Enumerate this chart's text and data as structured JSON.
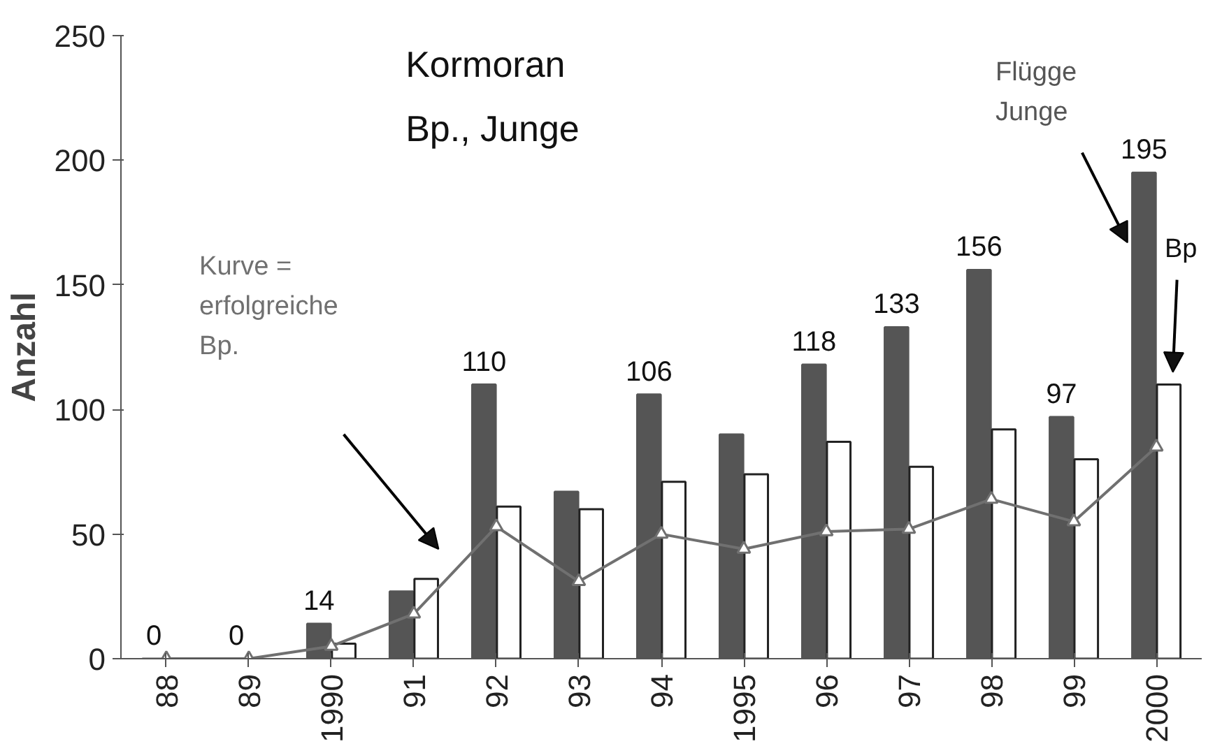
{
  "chart_data": {
    "type": "bar",
    "title": "Kormoran",
    "subtitle": "Bp., Junge",
    "ylabel": "Anzahl",
    "categories": [
      "88",
      "89",
      "1990",
      "91",
      "92",
      "93",
      "94",
      "1995",
      "96",
      "97",
      "98",
      "99",
      "2000"
    ],
    "series": [
      {
        "name": "Flügge Junge",
        "color": "#555555",
        "values": [
          0,
          0,
          14,
          27,
          110,
          67,
          106,
          90,
          118,
          133,
          156,
          97,
          195
        ],
        "value_labels": [
          "0",
          "0",
          "14",
          null,
          "110",
          null,
          "106",
          null,
          "118",
          "133",
          "156",
          "97",
          "195"
        ]
      },
      {
        "name": "Bp",
        "color": "#ffffff",
        "values": [
          0,
          0,
          6,
          32,
          61,
          60,
          71,
          74,
          87,
          77,
          92,
          80,
          110
        ]
      },
      {
        "name": "Kurve = erfolgreiche Bp.",
        "type": "line",
        "color": "#707070",
        "values": [
          0,
          0,
          5,
          18,
          53,
          31,
          50,
          44,
          51,
          52,
          64,
          55,
          85
        ]
      }
    ],
    "ylim": [
      0,
      250
    ],
    "yticks": [
      0,
      50,
      100,
      150,
      200,
      250
    ],
    "grid": false,
    "legend": false,
    "marker": "triangle",
    "line_style": "solid"
  }
}
